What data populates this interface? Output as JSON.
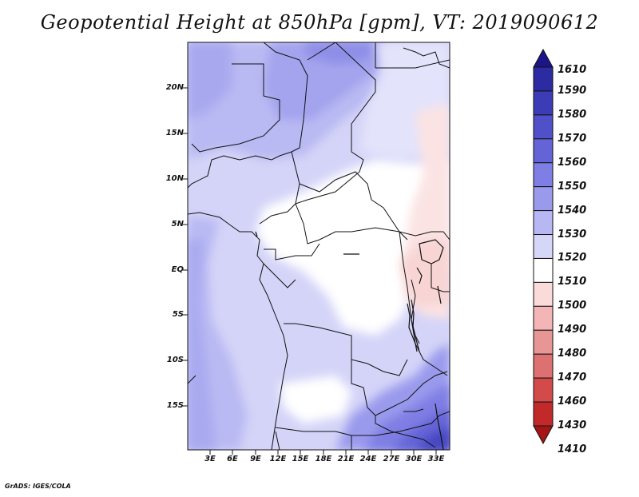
{
  "title": "Geopotential Height at 850hPa [gpm], VT: 2019090612",
  "credit": "GrADS: IGES/COLA",
  "lat_labels": [
    "20N",
    "15N",
    "10N",
    "5N",
    "EQ",
    "5S",
    "10S",
    "15S"
  ],
  "lon_labels": [
    "3E",
    "6E",
    "9E",
    "12E",
    "15E",
    "18E",
    "21E",
    "24E",
    "27E",
    "30E",
    "33E"
  ],
  "colorbar": {
    "levels": [
      "1610",
      "1590",
      "1580",
      "1570",
      "1560",
      "1550",
      "1540",
      "1530",
      "1520",
      "1510",
      "1500",
      "1490",
      "1480",
      "1470",
      "1460",
      "1430",
      "1410"
    ],
    "colors": [
      "#1c1489",
      "#2c2ba2",
      "#3c3cb7",
      "#5050c8",
      "#6464d6",
      "#7e7ee4",
      "#9a9aed",
      "#b7b7f3",
      "#d6d6f9",
      "#ffffff",
      "#fbdada",
      "#f3b5b5",
      "#e89595",
      "#dd7070",
      "#d24a4a",
      "#c22a2a",
      "#a61515"
    ]
  }
}
